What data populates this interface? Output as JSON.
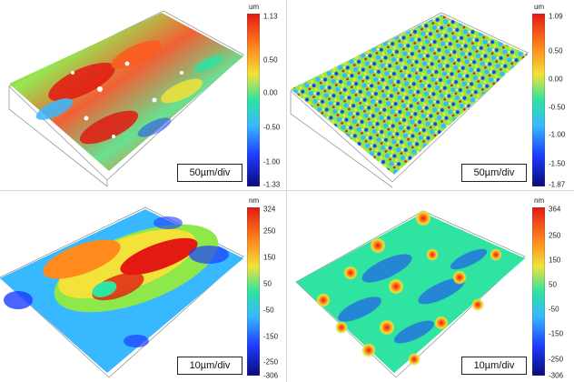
{
  "panels": [
    {
      "unit": "um",
      "ticks": [
        "1.13",
        "0.50",
        "0.00",
        "-0.50",
        "-1.00",
        "-1.33"
      ],
      "scale_label": "50µm/div"
    },
    {
      "unit": "um",
      "ticks": [
        "1.09",
        "0.50",
        "0.00",
        "-0.50",
        "-1.00",
        "-1.50",
        "-1.87"
      ],
      "scale_label": "50µm/div"
    },
    {
      "unit": "nm",
      "ticks": [
        "324",
        "250",
        "150",
        "50",
        "-50",
        "-150",
        "-250",
        "-306"
      ],
      "scale_label": "10µm/div"
    },
    {
      "unit": "nm",
      "ticks": [
        "364",
        "250",
        "150",
        "50",
        "-50",
        "-150",
        "-250",
        "-306"
      ],
      "scale_label": "10µm/div"
    }
  ],
  "colormap": [
    "#0a0a7a",
    "#1e3cff",
    "#38b8ff",
    "#2fe3a0",
    "#8fe84a",
    "#f2e23a",
    "#ff8a1e",
    "#e21a12"
  ]
}
